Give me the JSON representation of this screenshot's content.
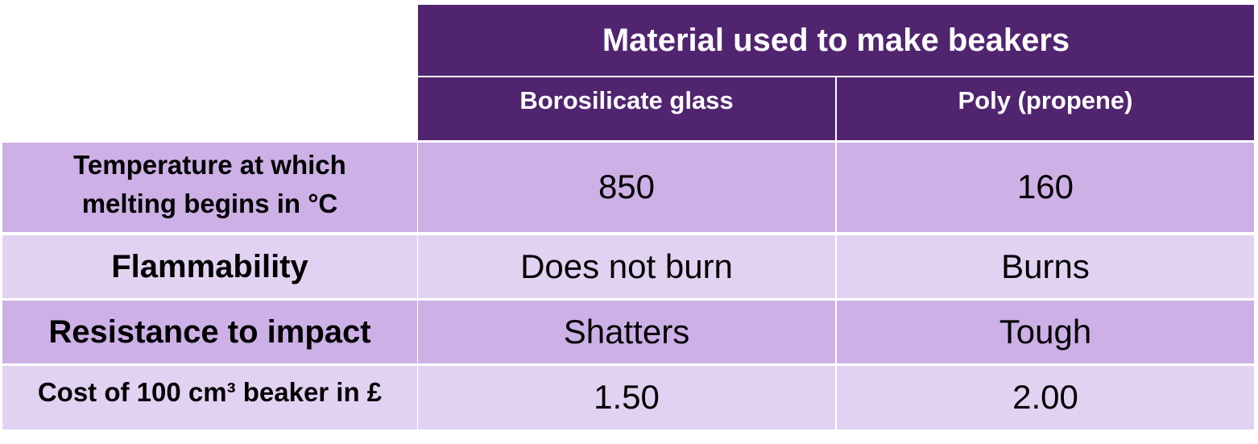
{
  "table": {
    "title": "Material used to make beakers",
    "columns": [
      "Borosilicate glass",
      "Poly (propene)"
    ],
    "rows": [
      {
        "label": "Temperature at which melting begins in °C",
        "values": [
          "850",
          "160"
        ]
      },
      {
        "label": "Flammability",
        "values": [
          "Does not burn",
          "Burns"
        ]
      },
      {
        "label": "Resistance to impact",
        "values": [
          "Shatters",
          "Tough"
        ]
      },
      {
        "label": "Cost of 100 cm³ beaker in £",
        "values": [
          "1.50",
          "2.00"
        ]
      }
    ]
  },
  "colors": {
    "header": "#50246f",
    "row_dark": "#cdb0e6",
    "row_light": "#e2d2f2"
  }
}
